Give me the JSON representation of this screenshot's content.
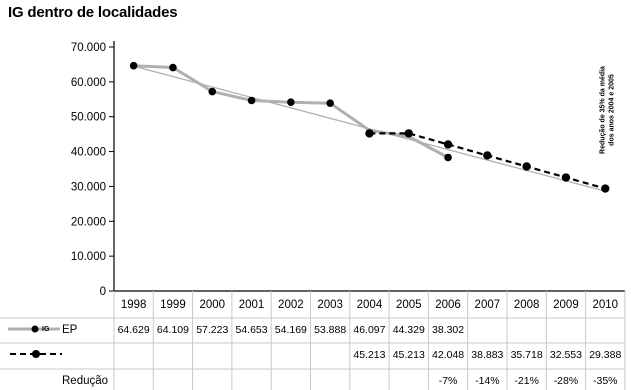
{
  "chart_data": {
    "type": "line",
    "title": "IG dentro de localidades",
    "xlabel": "",
    "ylabel": "",
    "ylim": [
      0,
      70000
    ],
    "y_ticks": [
      "0",
      "10.000",
      "20.000",
      "30.000",
      "40.000",
      "50.000",
      "60.000",
      "70.000"
    ],
    "y_tick_values": [
      0,
      10000,
      20000,
      30000,
      40000,
      50000,
      60000,
      70000
    ],
    "categories": [
      "1998",
      "1999",
      "2000",
      "2001",
      "2002",
      "2003",
      "2004",
      "2005",
      "2006",
      "2007",
      "2008",
      "2009",
      "2010"
    ],
    "grid": false,
    "legend": "table-below",
    "series": [
      {
        "name": "EP",
        "marker_label": "IG",
        "style": "solid-gray",
        "color": "#b0b0b0",
        "values": [
          64629,
          64109,
          57223,
          54653,
          54169,
          53888,
          46097,
          44329,
          38302,
          null,
          null,
          null,
          null
        ],
        "labels": [
          "64.629",
          "64.109",
          "57.223",
          "54.653",
          "54.169",
          "53.888",
          "46.097",
          "44.329",
          "38.302",
          "",
          "",
          "",
          ""
        ]
      },
      {
        "name": "",
        "style": "dashed-black",
        "color": "#000000",
        "values": [
          null,
          null,
          null,
          null,
          null,
          null,
          45213,
          45213,
          42048,
          38883,
          35718,
          32553,
          29388
        ],
        "labels": [
          "",
          "",
          "",
          "",
          "",
          "",
          "45.213",
          "45.213",
          "42.048",
          "38.883",
          "35.718",
          "32.553",
          "29.388"
        ]
      }
    ],
    "trendline": {
      "from": [
        1998,
        64500
      ],
      "to": [
        2010,
        28600
      ],
      "color": "#b0b0b0"
    },
    "reduction_row": {
      "label": "Redução",
      "values": [
        "",
        "",
        "",
        "",
        "",
        "",
        "",
        "",
        "-7%",
        "-14%",
        "-21%",
        "-28%",
        "-35%"
      ]
    },
    "annotation": {
      "lines": [
        "Redução de 35% da média",
        "dos anos 2004 e 2005"
      ],
      "category": "2010"
    }
  }
}
